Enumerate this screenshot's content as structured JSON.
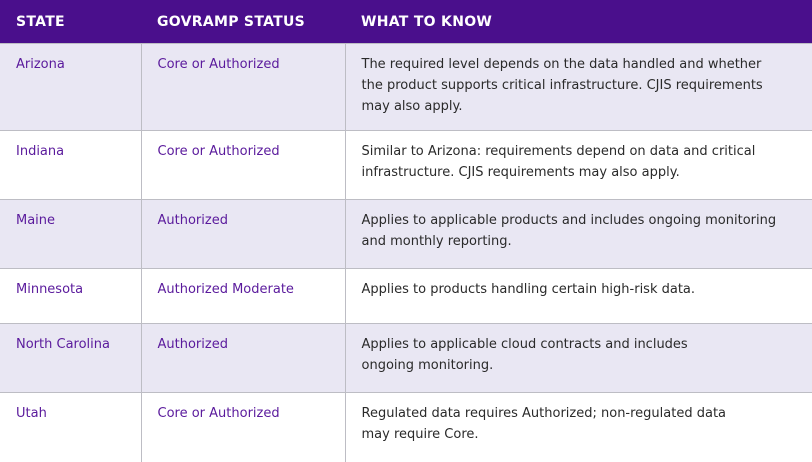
{
  "header": {
    "columns": [
      "STATE",
      "GOVRAMP STATUS",
      "WHAT TO KNOW"
    ]
  },
  "table": {
    "rows": [
      [
        "Arizona",
        "Core or Authorized",
        [
          "The required level depends on the data handled and whether",
          "the product supports critical infrastructure. CJIS requirements",
          "may also apply."
        ]
      ],
      [
        "Indiana",
        "Core or Authorized",
        [
          "Similar to Arizona: requirements depend on data and critical",
          "infrastructure. CJIS requirements may also apply."
        ]
      ],
      [
        "Maine",
        "Authorized",
        [
          "Applies to applicable products and includes ongoing monitoring",
          "and monthly reporting."
        ]
      ],
      [
        "Minnesota",
        "Authorized Moderate",
        [
          "Applies to products handling certain high-risk data."
        ]
      ],
      [
        "North Carolina",
        "Authorized",
        [
          "Applies to applicable cloud contracts and includes",
          "ongoing monitoring."
        ]
      ],
      [
        "Utah",
        "Core or Authorized",
        [
          "Regulated data requires Authorized; non-regulated data",
          "may require Core."
        ]
      ]
    ]
  }
}
